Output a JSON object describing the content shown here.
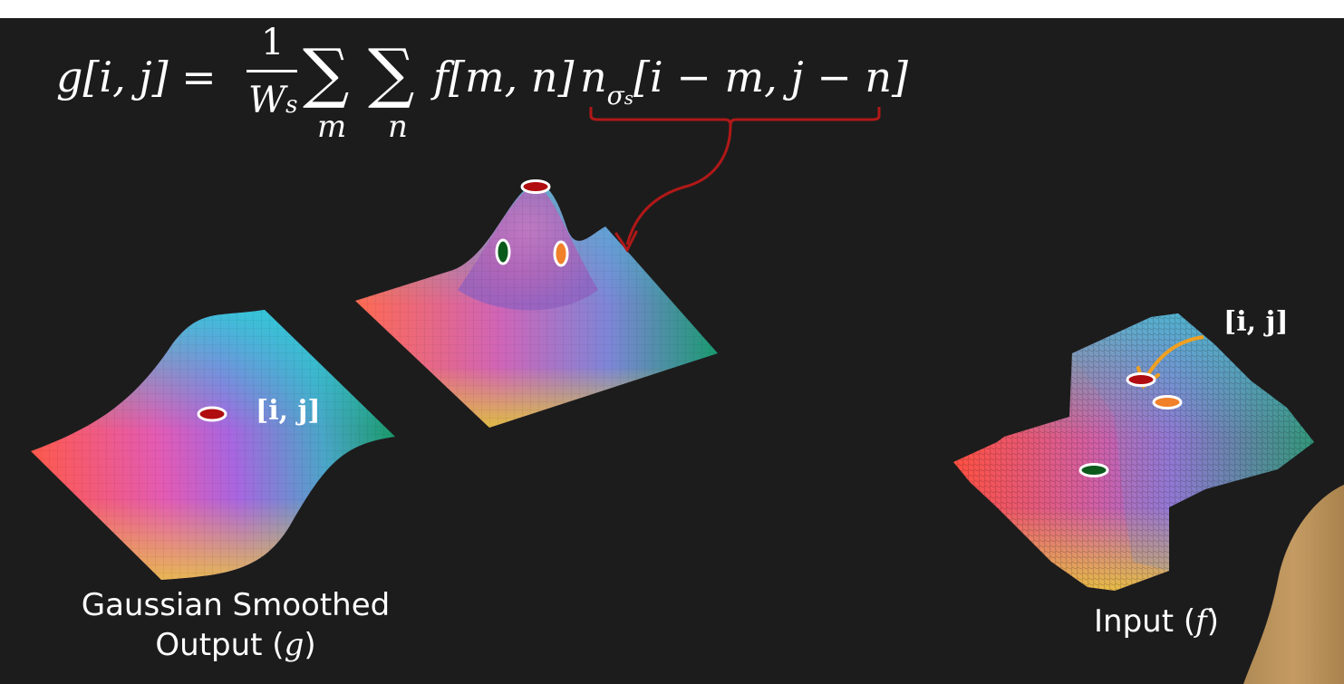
{
  "equation": {
    "lhs": "g[i, j] =",
    "frac_num": "1",
    "frac_den_main": "W",
    "frac_den_sub": "s",
    "sigma_symbol": "∑",
    "sum_index_1": "m",
    "sum_index_2": "n",
    "term_f": "f[m, n]",
    "kernel_n": "n",
    "kernel_sigma": "σ",
    "kernel_sigma_sub": "s",
    "kernel_args": "[i − m, j − n]"
  },
  "labels": {
    "output_ij": "[i, j]",
    "input_ij": "[i, j]"
  },
  "captions": {
    "output_line1": "Gaussian Smoothed",
    "output_line2_text": "Output (",
    "output_line2_var": "g",
    "output_line2_close": ")",
    "input_text": "Input (",
    "input_var": "f",
    "input_close": ")"
  },
  "colors": {
    "background": "#1c1c1c",
    "bracket_arrow": "#b01818",
    "marker_red": "#b00d10",
    "marker_green": "#0b5a1c",
    "marker_orange": "#f0802a",
    "input_arrow": "#f0a020"
  }
}
